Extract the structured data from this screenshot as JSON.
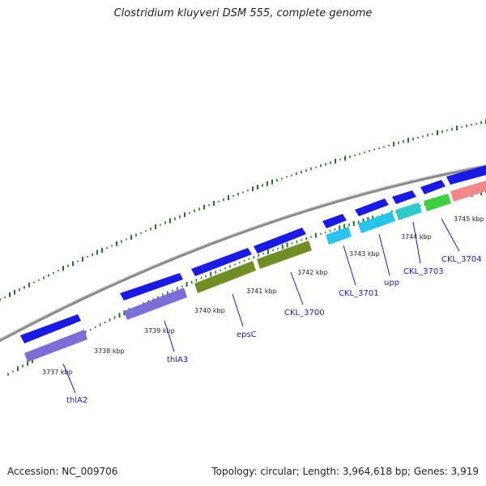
{
  "title": "Clostridium kluyveri DSM 555, complete genome",
  "footer": {
    "accession": "Accession: NC_009706",
    "summary": "Topology: circular; Length: 3,964,618 bp; Genes: 3,919"
  },
  "colors": {
    "backbone": "#888888",
    "cds_forward": "#1a1ae6",
    "gene_purple": "#7b6ed8",
    "gene_olive": "#6f8f24",
    "gene_cyan": "#27c3ec",
    "gene_teal": "#2ec9c9",
    "gene_green": "#3fcf3f",
    "gene_salmon": "#f08888",
    "gc_ticks": "#1e7a1e",
    "label": "#1a1acc"
  },
  "kbp_labels": [
    "3737 kbp",
    "3738 kbp",
    "3739 kbp",
    "3740 kbp",
    "3741 kbp",
    "3742 kbp",
    "3743 kbp",
    "3744 kbp",
    "3745 kbp"
  ],
  "gene_labels": [
    "thlA2",
    "thlA3",
    "epsC",
    "CKL_3700",
    "CKL_3701",
    "upp",
    "CKL_3703",
    "CKL_3704"
  ]
}
